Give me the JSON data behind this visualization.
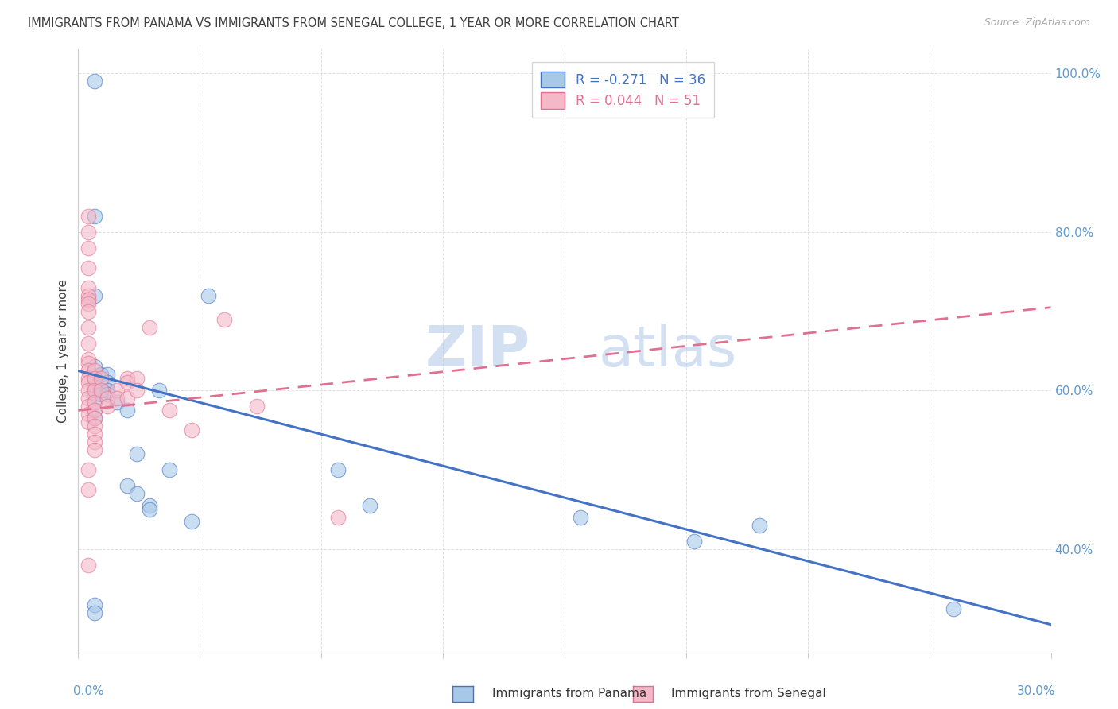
{
  "title": "IMMIGRANTS FROM PANAMA VS IMMIGRANTS FROM SENEGAL COLLEGE, 1 YEAR OR MORE CORRELATION CHART",
  "source": "Source: ZipAtlas.com",
  "ylabel": "College, 1 year or more",
  "xmin": 0.0,
  "xmax": 0.3,
  "ymin": 0.27,
  "ymax": 1.03,
  "panama_color": "#a8c8e8",
  "senegal_color": "#f4b8c8",
  "panama_line_color": "#4472c4",
  "senegal_line_color": "#e07090",
  "legend_panama_r": "R = -0.271",
  "legend_panama_n": "N = 36",
  "legend_senegal_r": "R = 0.044",
  "legend_senegal_n": "N = 51",
  "panama_scatter_x": [
    0.005,
    0.005,
    0.005,
    0.005,
    0.005,
    0.005,
    0.005,
    0.005,
    0.005,
    0.005,
    0.007,
    0.007,
    0.007,
    0.009,
    0.009,
    0.009,
    0.009,
    0.012,
    0.015,
    0.015,
    0.018,
    0.018,
    0.022,
    0.022,
    0.025,
    0.028,
    0.035,
    0.04,
    0.08,
    0.09,
    0.155,
    0.19,
    0.21,
    0.27,
    0.005,
    0.005
  ],
  "panama_scatter_y": [
    0.99,
    0.82,
    0.72,
    0.63,
    0.615,
    0.605,
    0.595,
    0.585,
    0.575,
    0.565,
    0.62,
    0.605,
    0.595,
    0.62,
    0.61,
    0.6,
    0.595,
    0.585,
    0.575,
    0.48,
    0.52,
    0.47,
    0.455,
    0.45,
    0.6,
    0.5,
    0.435,
    0.72,
    0.5,
    0.455,
    0.44,
    0.41,
    0.43,
    0.325,
    0.33,
    0.32
  ],
  "senegal_scatter_x": [
    0.003,
    0.003,
    0.003,
    0.003,
    0.003,
    0.003,
    0.003,
    0.003,
    0.003,
    0.003,
    0.003,
    0.003,
    0.003,
    0.003,
    0.003,
    0.003,
    0.003,
    0.003,
    0.003,
    0.003,
    0.003,
    0.003,
    0.003,
    0.005,
    0.005,
    0.005,
    0.005,
    0.005,
    0.005,
    0.005,
    0.005,
    0.005,
    0.005,
    0.007,
    0.007,
    0.009,
    0.009,
    0.012,
    0.012,
    0.015,
    0.015,
    0.015,
    0.018,
    0.018,
    0.022,
    0.028,
    0.035,
    0.045,
    0.055,
    0.08,
    0.003
  ],
  "senegal_scatter_y": [
    0.82,
    0.8,
    0.78,
    0.755,
    0.73,
    0.72,
    0.715,
    0.71,
    0.7,
    0.68,
    0.66,
    0.64,
    0.635,
    0.625,
    0.615,
    0.61,
    0.6,
    0.59,
    0.58,
    0.57,
    0.56,
    0.5,
    0.475,
    0.625,
    0.615,
    0.6,
    0.585,
    0.575,
    0.565,
    0.555,
    0.545,
    0.535,
    0.525,
    0.615,
    0.6,
    0.59,
    0.58,
    0.6,
    0.59,
    0.615,
    0.61,
    0.59,
    0.615,
    0.6,
    0.68,
    0.575,
    0.55,
    0.69,
    0.58,
    0.44,
    0.38
  ],
  "panama_trendline_x": [
    0.0,
    0.3
  ],
  "panama_trendline_y": [
    0.625,
    0.305
  ],
  "senegal_trendline_x": [
    0.0,
    0.3
  ],
  "senegal_trendline_y": [
    0.575,
    0.705
  ],
  "watermark_zip": "ZIP",
  "watermark_atlas": "atlas",
  "background_color": "#ffffff",
  "grid_color": "#dddddd",
  "title_color": "#404040",
  "tick_color": "#5b9bd5",
  "source_color": "#aaaaaa"
}
